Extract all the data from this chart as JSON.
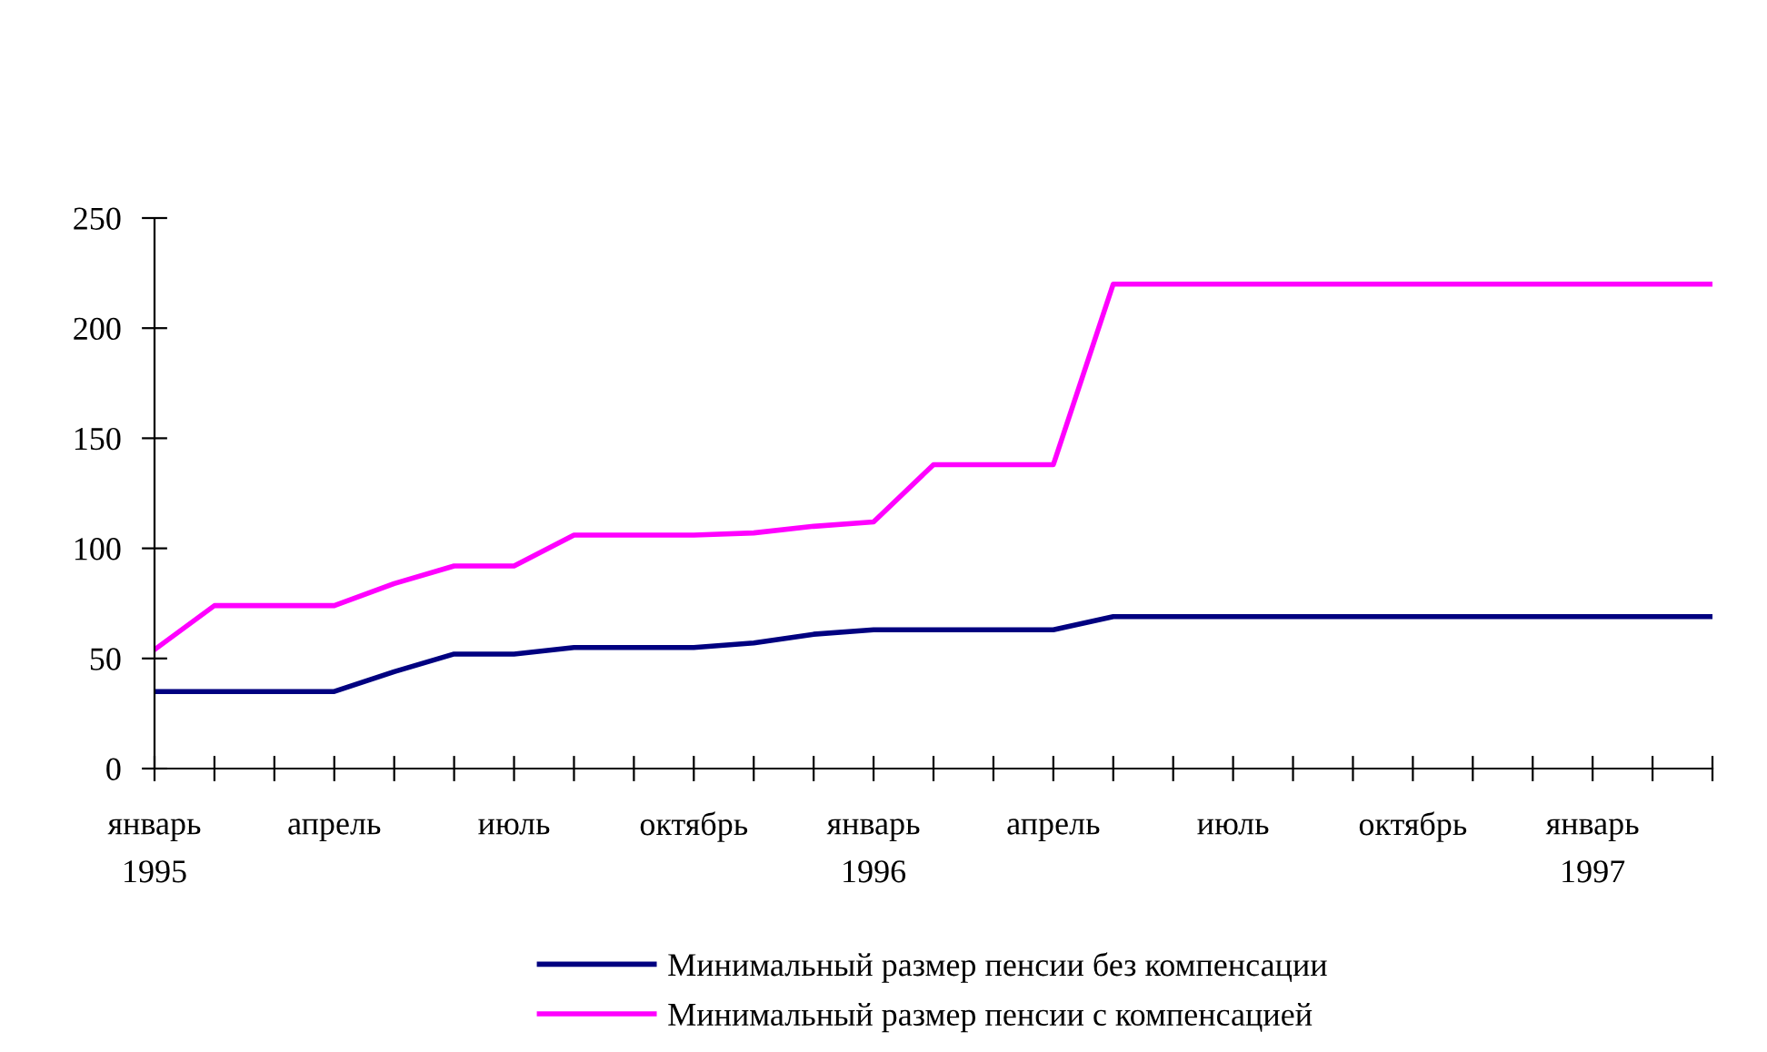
{
  "chart_data": {
    "type": "line",
    "categories": [
      "январь\n1995",
      null,
      null,
      "апрель",
      null,
      null,
      "июль",
      null,
      null,
      "октябрь",
      null,
      null,
      "январь\n1996",
      null,
      null,
      "апрель",
      null,
      null,
      "июль",
      null,
      null,
      "октябрь",
      null,
      null,
      "январь\n1997",
      null,
      null
    ],
    "series": [
      {
        "name": "Минимальный размер пенсии без компенсации",
        "color": "#000080",
        "values": [
          35,
          35,
          35,
          35,
          44,
          52,
          52,
          55,
          55,
          55,
          57,
          61,
          63,
          63,
          63,
          63,
          69,
          69,
          69,
          69,
          69,
          69,
          69,
          69,
          69,
          69,
          69
        ]
      },
      {
        "name": "Минимальный размер пенсии с компенсацией",
        "color": "#ff00ff",
        "values": [
          54,
          74,
          74,
          74,
          84,
          92,
          92,
          106,
          106,
          106,
          107,
          110,
          112,
          138,
          138,
          138,
          220,
          220,
          220,
          220,
          220,
          220,
          220,
          220,
          220,
          220,
          220
        ]
      }
    ],
    "ylim": [
      0,
      250
    ],
    "yticks": [
      0,
      50,
      100,
      150,
      200,
      250
    ],
    "grid": false,
    "legend": "bottom",
    "marker": "none",
    "line_style": "solid"
  }
}
